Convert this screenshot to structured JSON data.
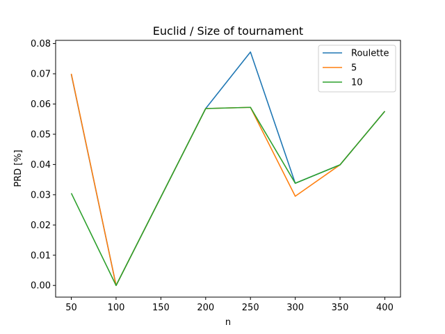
{
  "chart_data": {
    "type": "line",
    "title": "Euclid / Size of tournament",
    "xlabel": "n",
    "ylabel": "PRD [%]",
    "x": [
      50,
      100,
      200,
      250,
      300,
      350,
      400
    ],
    "xlim": [
      32.5,
      417.5
    ],
    "ylim": [
      -0.00386,
      0.08105
    ],
    "xticks": [
      50,
      100,
      150,
      200,
      250,
      300,
      350,
      400
    ],
    "yticks": [
      0.0,
      0.01,
      0.02,
      0.03,
      0.04,
      0.05,
      0.06,
      0.07,
      0.08
    ],
    "ytick_labels": [
      "0.00",
      "0.01",
      "0.02",
      "0.03",
      "0.04",
      "0.05",
      "0.06",
      "0.07",
      "0.08"
    ],
    "grid": false,
    "legend_position": "top-right",
    "series": [
      {
        "name": "Roulette",
        "color": "#1f77b4",
        "values": [
          0.0698,
          0.0,
          0.0585,
          0.0772,
          0.0338,
          0.0399,
          0.0576
        ]
      },
      {
        "name": "5",
        "color": "#ff7f0e",
        "values": [
          0.07,
          0.0,
          0.0585,
          0.0589,
          0.0295,
          0.0399,
          0.0576
        ]
      },
      {
        "name": "10",
        "color": "#2ca02c",
        "values": [
          0.0305,
          0.0,
          0.0585,
          0.0589,
          0.0338,
          0.0399,
          0.0576
        ]
      }
    ]
  }
}
